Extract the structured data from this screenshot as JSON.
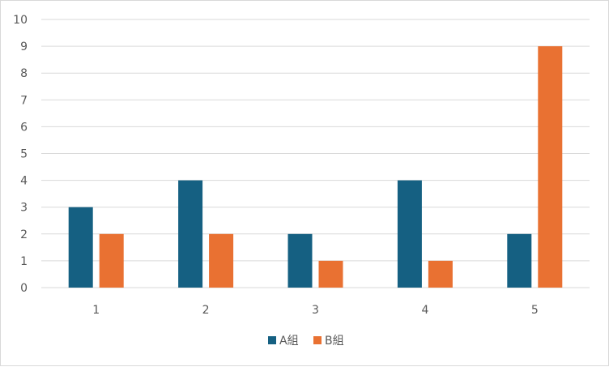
{
  "chart_data": {
    "type": "bar",
    "categories": [
      "1",
      "2",
      "3",
      "4",
      "5"
    ],
    "series": [
      {
        "name": "A組",
        "values": [
          3,
          4,
          2,
          4,
          2
        ],
        "color": "#156082"
      },
      {
        "name": "B組",
        "values": [
          2,
          2,
          1,
          1,
          9
        ],
        "color": "#e97132"
      }
    ],
    "ylim": [
      0,
      10
    ],
    "yticks": [
      "0",
      "1",
      "2",
      "3",
      "4",
      "5",
      "6",
      "7",
      "8",
      "9",
      "10"
    ],
    "grid": true,
    "legend_position": "bottom",
    "gridline_color": "#d9d9d9",
    "text_color": "#595959"
  }
}
